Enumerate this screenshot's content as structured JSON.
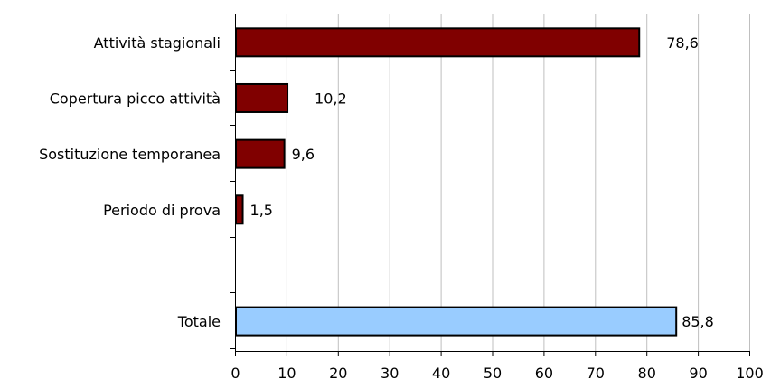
{
  "chart_data": {
    "type": "bar",
    "orientation": "horizontal",
    "categories": [
      "Attività stagionali",
      "Copertura picco attività",
      "Sostituzione temporanea",
      "Periodo di prova",
      "",
      "Totale"
    ],
    "values": [
      78.6,
      10.2,
      9.6,
      1.5,
      null,
      85.8
    ],
    "data_labels": [
      "78,6",
      "10,2",
      "9,6",
      "1,5",
      "",
      "85,8"
    ],
    "xlim": [
      0,
      100
    ],
    "x_ticks": [
      0,
      10,
      20,
      30,
      40,
      50,
      60,
      70,
      80,
      90,
      100
    ],
    "x_tick_labels": [
      "0",
      "10",
      "20",
      "30",
      "40",
      "50",
      "60",
      "70",
      "80",
      "90",
      "100"
    ],
    "grid": true,
    "legend": "none",
    "title": "",
    "xlabel": "",
    "ylabel": "",
    "colors": {
      "bar": "#800000",
      "total_bar": "#99ccff",
      "bar_border": "#000000",
      "grid": "#bfbfbf"
    }
  }
}
